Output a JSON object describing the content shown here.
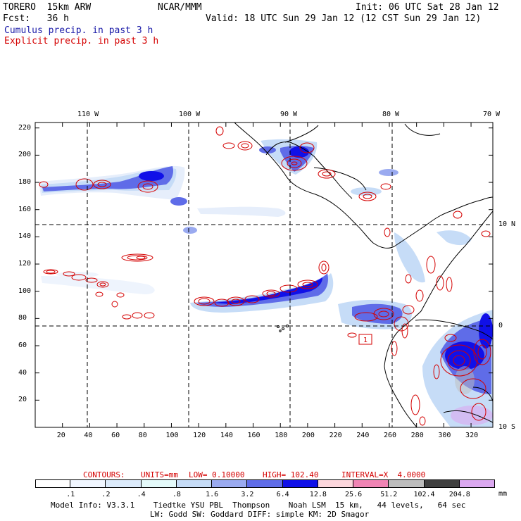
{
  "header": {
    "model": "TORERO  15km ARW",
    "org": "NCAR/MMM",
    "init": "Init: 06 UTC Sat 28 Jan 12",
    "fcst": "Fcst:   36 h",
    "valid": "Valid: 18 UTC Sun 29 Jan 12 (12 CST Sun 29 Jan 12)",
    "legend_cumulus": "Cumulus precip. in past 3 h",
    "legend_explicit": "Explicit precip. in past 3 h"
  },
  "colors": {
    "cumulus": "#1a1aa8",
    "explicit": "#d40000",
    "land_outline": "#000000"
  },
  "axes": {
    "x_ticks": [
      "20",
      "40",
      "60",
      "80",
      "100",
      "120",
      "140",
      "160",
      "180",
      "200",
      "220",
      "240",
      "260",
      "280",
      "300",
      "320"
    ],
    "y_ticks": [
      "20",
      "40",
      "60",
      "80",
      "100",
      "120",
      "140",
      "160",
      "180",
      "200",
      "220"
    ],
    "lon_labels": [
      "110 W",
      "100 W",
      "90 W",
      "80 W",
      "70 W"
    ],
    "lat_labels": [
      "10 N",
      "0",
      "10 S"
    ]
  },
  "contour_label": "1",
  "contour_info": {
    "prefix": "CONTOURS:",
    "units": "UNITS=mm",
    "low": "LOW= 0.10000",
    "high": "HIGH= 102.40",
    "interval": "INTERVAL=X  4.0000"
  },
  "colorbar": {
    "unit": "mm",
    "labels": [
      ".1",
      ".2",
      ".4",
      ".8",
      "1.6",
      "3.2",
      "6.4",
      "12.8",
      "25.6",
      "51.2",
      "102.4",
      "204.8"
    ],
    "colors": [
      "#ffffff",
      "#f0f6ff",
      "#dcebfb",
      "#e4fafa",
      "#c6dcf7",
      "#9aaaf0",
      "#5f6ce8",
      "#1010e8",
      "#fcd6dc",
      "#f084b4",
      "#bdbdbd",
      "#404040",
      "#dba8f0"
    ]
  },
  "footer": {
    "line1": "Model Info: V3.3.1    Tiedtke YSU PBL  Thompson    Noah LSM  15 km,   44 levels,   64 sec",
    "line2": "LW: Godd SW: Goddard DIFF: simple KM: 2D Smagor"
  }
}
